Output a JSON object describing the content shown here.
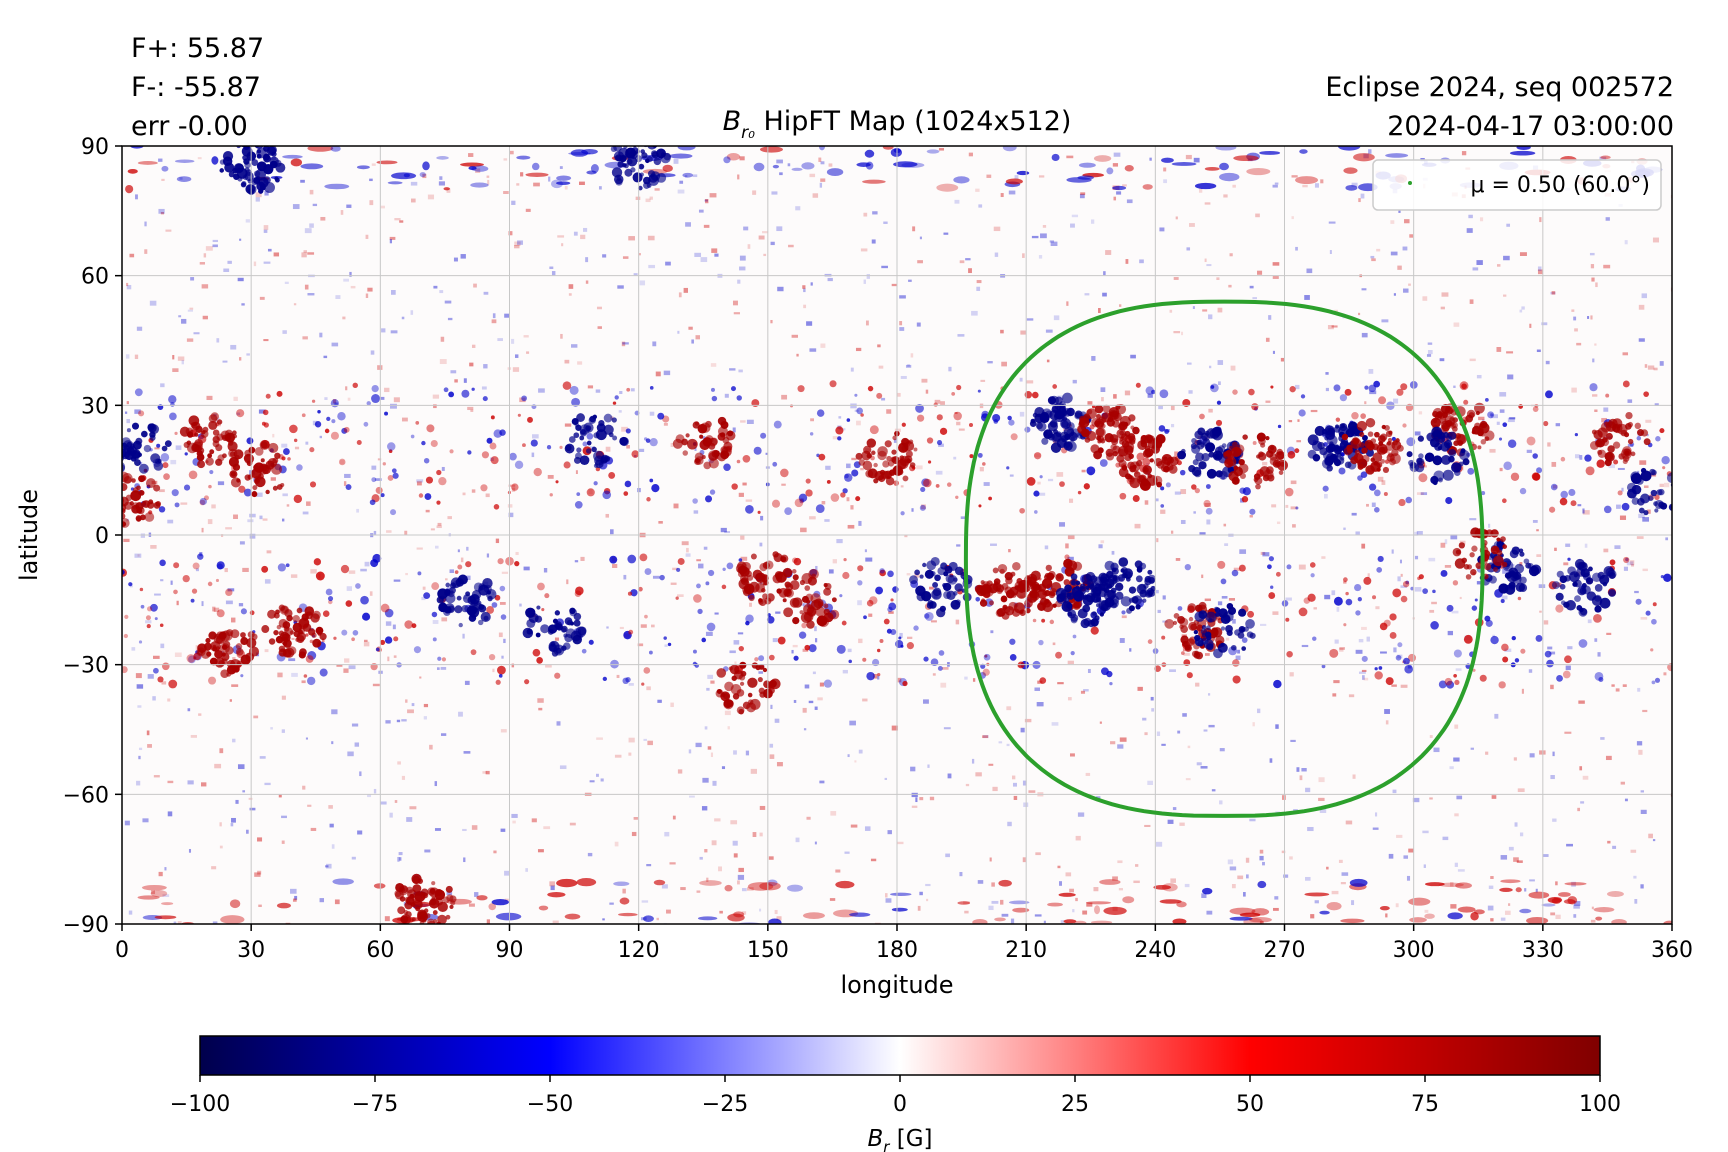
{
  "header": {
    "flux_pos": "F+: 55.87",
    "flux_neg": "F-: -55.87",
    "err": "err -0.00",
    "title_symbol": "B",
    "title_sub": "r₀",
    "title_rest": " HipFT Map (1024x512)",
    "run_label": "Eclipse 2024, seq 002572",
    "timestamp": "2024-04-17 03:00:00"
  },
  "colors": {
    "positive": "#cc0000",
    "negative": "#0000cc",
    "mu_contour": "#2ca02c",
    "grid": "#c8c8c8"
  },
  "chart_data": {
    "type": "heatmap",
    "xlabel": "longitude",
    "ylabel": "latitude",
    "xlim": [
      0,
      360
    ],
    "ylim": [
      -90,
      90
    ],
    "xticks": [
      0,
      30,
      60,
      90,
      120,
      150,
      180,
      210,
      240,
      270,
      300,
      330,
      360
    ],
    "yticks": [
      90,
      60,
      30,
      0,
      -30,
      -60,
      -90
    ],
    "ytick_labels": [
      "90",
      "60",
      "30",
      "0",
      "−30",
      "−60",
      "−90"
    ],
    "grid": true,
    "colormap": "seismic",
    "colorbar": {
      "label_symbol": "B",
      "label_sub": "r",
      "label_unit": " [G]",
      "vmin": -100,
      "vmax": 100,
      "ticks": [
        -100,
        -75,
        -50,
        -25,
        0,
        25,
        50,
        75,
        100
      ],
      "tick_labels": [
        "−100",
        "−75",
        "−50",
        "−25",
        "0",
        "25",
        "50",
        "75",
        "100"
      ]
    },
    "legend": {
      "label_mu": "μ = 0.50 (60.0°)",
      "placement": "upper right"
    },
    "mu_contour": {
      "center_lon": 256,
      "center_lat": -5,
      "lon_range": [
        196,
        316
      ],
      "lat_range": [
        -65,
        54
      ]
    },
    "active_regions": [
      {
        "lon": 218,
        "lat": 26,
        "sign": -1,
        "strength": 1.0
      },
      {
        "lon": 229,
        "lat": 24,
        "sign": 1,
        "strength": 1.0
      },
      {
        "lon": 238,
        "lat": 17,
        "sign": 1,
        "strength": 0.9
      },
      {
        "lon": 253,
        "lat": 19,
        "sign": -1,
        "strength": 0.8
      },
      {
        "lon": 263,
        "lat": 17,
        "sign": 1,
        "strength": 0.7
      },
      {
        "lon": 283,
        "lat": 20,
        "sign": -1,
        "strength": 0.9
      },
      {
        "lon": 290,
        "lat": 20,
        "sign": 1,
        "strength": 0.8
      },
      {
        "lon": 311,
        "lat": 25,
        "sign": 1,
        "strength": 0.9
      },
      {
        "lon": 306,
        "lat": 18,
        "sign": -1,
        "strength": 0.6
      },
      {
        "lon": 206,
        "lat": -13,
        "sign": 1,
        "strength": 1.0
      },
      {
        "lon": 218,
        "lat": -12,
        "sign": 1,
        "strength": 0.8
      },
      {
        "lon": 224,
        "lat": -15,
        "sign": -1,
        "strength": 1.0
      },
      {
        "lon": 233,
        "lat": -12,
        "sign": -1,
        "strength": 0.8
      },
      {
        "lon": 250,
        "lat": -22,
        "sign": 1,
        "strength": 0.8
      },
      {
        "lon": 256,
        "lat": -22,
        "sign": -1,
        "strength": 0.6
      },
      {
        "lon": 322,
        "lat": -7,
        "sign": -1,
        "strength": 0.7
      },
      {
        "lon": 316,
        "lat": -5,
        "sign": 1,
        "strength": 0.5
      },
      {
        "lon": 357,
        "lat": 10,
        "sign": -1,
        "strength": 0.6
      },
      {
        "lon": 2,
        "lat": 8,
        "sign": 1,
        "strength": 0.7
      },
      {
        "lon": 20,
        "lat": 22,
        "sign": 1,
        "strength": 0.7
      },
      {
        "lon": 32,
        "lat": 15,
        "sign": 1,
        "strength": 0.6
      },
      {
        "lon": 4,
        "lat": 20,
        "sign": -1,
        "strength": 0.6
      },
      {
        "lon": 40,
        "lat": -22,
        "sign": 1,
        "strength": 0.8
      },
      {
        "lon": 25,
        "lat": -27,
        "sign": 1,
        "strength": 0.7
      },
      {
        "lon": 80,
        "lat": -15,
        "sign": -1,
        "strength": 0.7
      },
      {
        "lon": 100,
        "lat": -22,
        "sign": -1,
        "strength": 0.6
      },
      {
        "lon": 110,
        "lat": 22,
        "sign": -1,
        "strength": 0.6
      },
      {
        "lon": 135,
        "lat": 22,
        "sign": 1,
        "strength": 0.6
      },
      {
        "lon": 150,
        "lat": -10,
        "sign": 1,
        "strength": 0.7
      },
      {
        "lon": 160,
        "lat": -15,
        "sign": 1,
        "strength": 0.6
      },
      {
        "lon": 178,
        "lat": 18,
        "sign": 1,
        "strength": 0.7
      },
      {
        "lon": 190,
        "lat": -12,
        "sign": -1,
        "strength": 0.6
      },
      {
        "lon": 145,
        "lat": -35,
        "sign": 1,
        "strength": 0.6
      },
      {
        "lon": 70,
        "lat": -85,
        "sign": 1,
        "strength": 0.9
      },
      {
        "lon": 30,
        "lat": 85,
        "sign": -1,
        "strength": 0.9
      },
      {
        "lon": 120,
        "lat": 86,
        "sign": -1,
        "strength": 0.8
      },
      {
        "lon": 340,
        "lat": -12,
        "sign": -1,
        "strength": 0.7
      },
      {
        "lon": 348,
        "lat": 22,
        "sign": 1,
        "strength": 0.6
      }
    ]
  }
}
